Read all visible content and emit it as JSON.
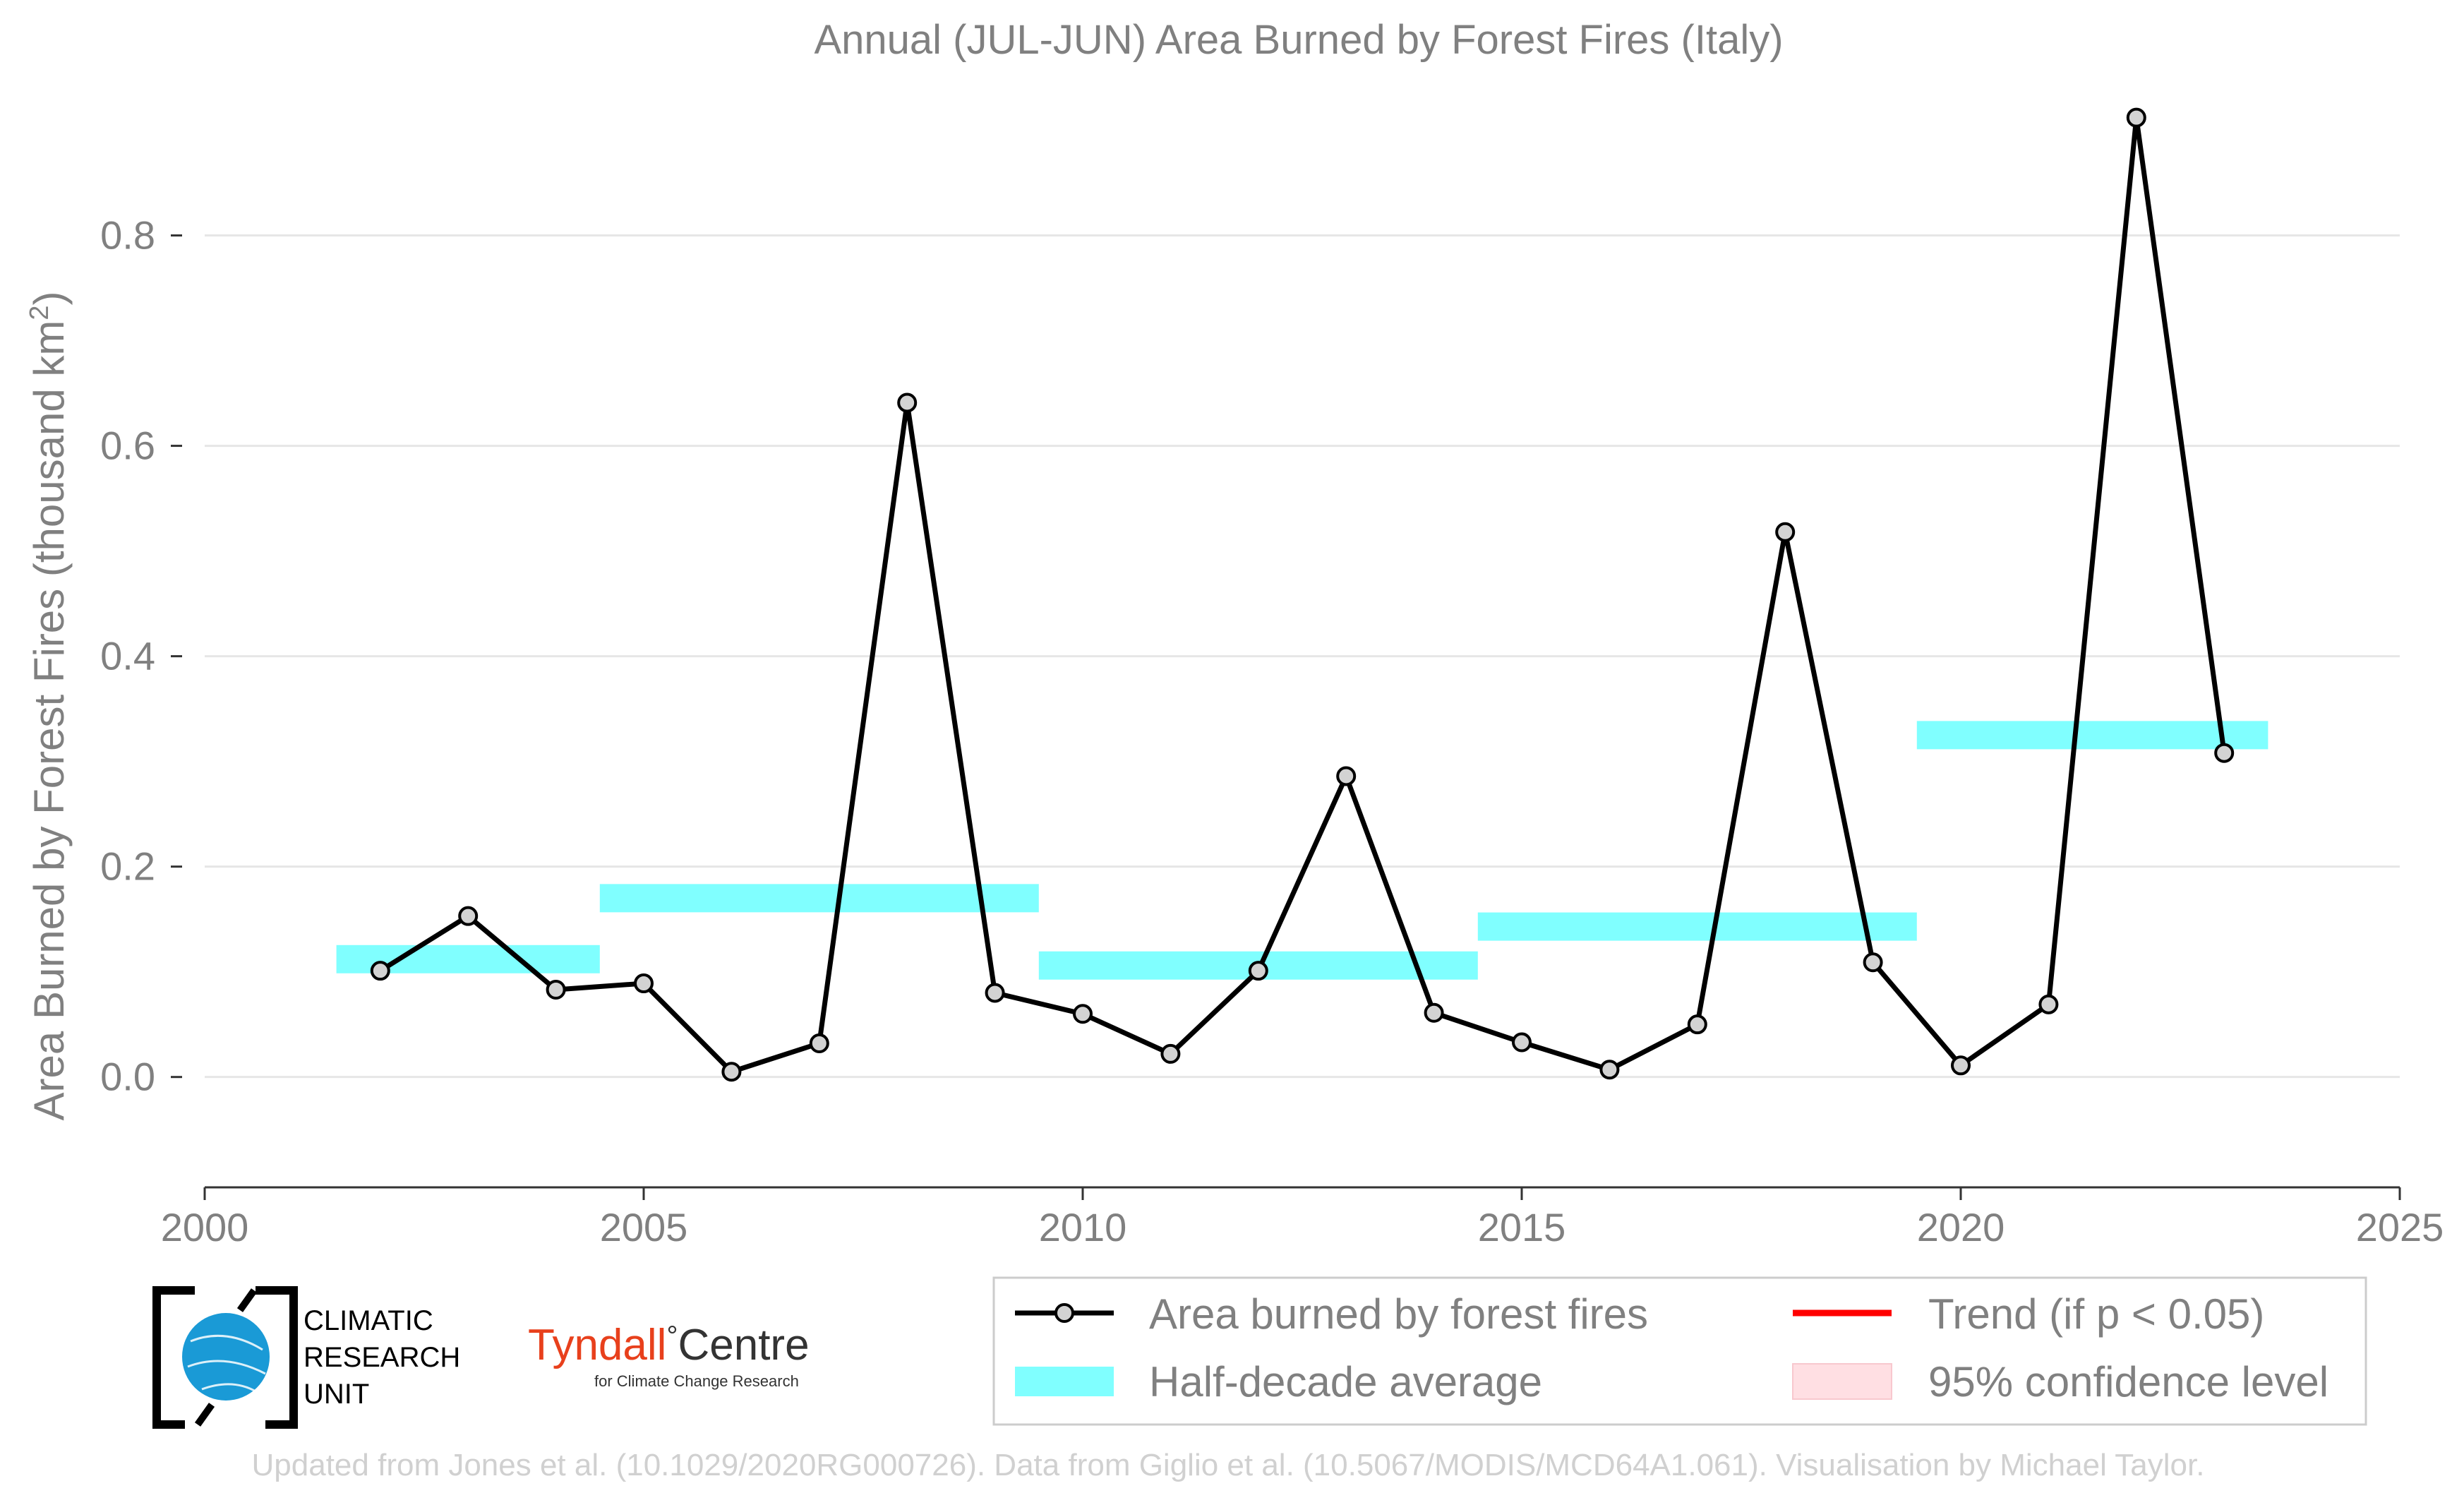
{
  "chart_data": {
    "type": "line",
    "title": "Annual (JUL-JUN) Area Burned by Forest Fires (Italy)",
    "ylabel_main": "Area Burned by Forest Fires (thousand km",
    "ylabel_sup": "2",
    "ylabel_close": ")",
    "xlim": [
      2000,
      2025
    ],
    "ylim": [
      -0.07,
      0.95
    ],
    "x_ticks": [
      2000,
      2005,
      2010,
      2015,
      2020,
      2025
    ],
    "y_ticks": [
      0.0,
      0.2,
      0.4,
      0.6,
      0.8
    ],
    "y_tick_labels": [
      "0.0",
      "0.2",
      "0.4",
      "0.6",
      "0.8"
    ],
    "grid": "horizontal",
    "series": [
      {
        "name": "Area burned by forest fires",
        "color": "#000000",
        "marker_fill": "#d3d3d3",
        "x": [
          2002,
          2003,
          2004,
          2005,
          2006,
          2007,
          2008,
          2009,
          2010,
          2011,
          2012,
          2013,
          2014,
          2015,
          2016,
          2017,
          2018,
          2019,
          2020,
          2021,
          2022,
          2023
        ],
        "y": [
          0.101,
          0.153,
          0.083,
          0.089,
          0.005,
          0.032,
          0.641,
          0.08,
          0.06,
          0.022,
          0.101,
          0.286,
          0.061,
          0.033,
          0.007,
          0.05,
          0.518,
          0.109,
          0.011,
          0.069,
          0.912,
          0.308
        ]
      }
    ],
    "half_decade_average": {
      "name": "Half-decade average",
      "color": "#80ffff",
      "segments": [
        {
          "x0": 2001.5,
          "x1": 2004.5,
          "y": 0.112
        },
        {
          "x0": 2004.5,
          "x1": 2009.5,
          "y": 0.17
        },
        {
          "x0": 2009.5,
          "x1": 2014.5,
          "y": 0.106
        },
        {
          "x0": 2014.5,
          "x1": 2019.5,
          "y": 0.143
        },
        {
          "x0": 2019.5,
          "x1": 2023.5,
          "y": 0.325
        }
      ]
    },
    "legend": {
      "placement": "bottom-right",
      "entries": [
        {
          "label": "Area burned by forest fires",
          "type": "line-marker",
          "color": "#000000"
        },
        {
          "label": "Trend (if p < 0.05)",
          "type": "line",
          "color": "#ff0000"
        },
        {
          "label": "Half-decade average",
          "type": "band",
          "color": "#80ffff"
        },
        {
          "label": "95% confidence level",
          "type": "patch",
          "color": "#ffdfe3"
        }
      ]
    }
  },
  "logos": {
    "cru_lines": [
      "CLIMATIC",
      "RESEARCH",
      "UNIT"
    ],
    "cru_color": "#1a9ad6",
    "tyndall_red": "Tyndall",
    "tyndall_deg": "°",
    "tyndall_black": "Centre",
    "tyndall_sub": "for Climate Change Research",
    "tyndall_color": "#e8401c"
  },
  "credit": "Updated from Jones et al. (10.1029/2020RG000726). Data from Giglio et al. (10.5067/MODIS/MCD64A1.061). Visualisation by Michael Taylor."
}
